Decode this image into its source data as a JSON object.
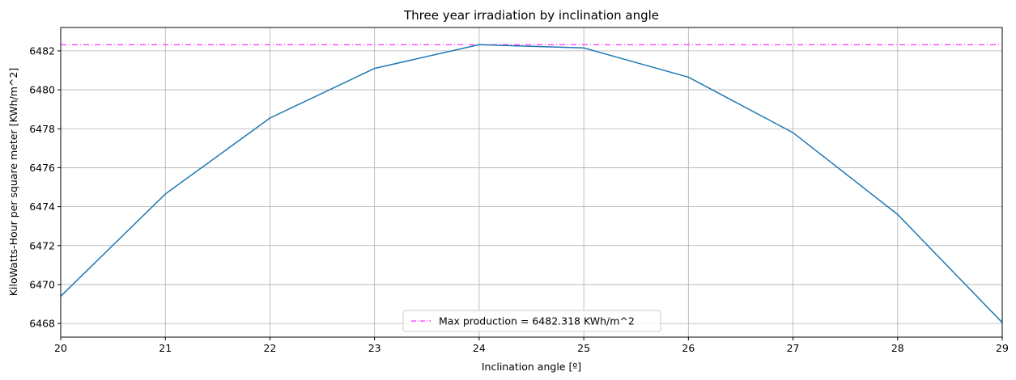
{
  "chart_data": {
    "type": "line",
    "title": "Three year irradiation by inclination angle",
    "xlabel": "Inclination angle [º]",
    "ylabel": "KiloWatts-Hour per square meter [KWh/m^2]",
    "xlim": [
      20,
      29
    ],
    "ylim": [
      6467.3,
      6483.2
    ],
    "x_ticks": [
      "20",
      "21",
      "22",
      "23",
      "24",
      "25",
      "26",
      "27",
      "28",
      "29"
    ],
    "y_ticks": [
      "6468",
      "6470",
      "6472",
      "6474",
      "6476",
      "6478",
      "6480",
      "6482"
    ],
    "x_tick_values": [
      20,
      21,
      22,
      23,
      24,
      25,
      26,
      27,
      28,
      29
    ],
    "y_tick_values": [
      6468,
      6470,
      6472,
      6474,
      6476,
      6478,
      6480,
      6482
    ],
    "grid": true,
    "legend_position": "bottom-center",
    "series": [
      {
        "color": "#1f77b4",
        "x": [
          20,
          21,
          22,
          23,
          24,
          25,
          26,
          27,
          28,
          29
        ],
        "y": [
          6469.4,
          6474.65,
          6478.55,
          6481.1,
          6482.318,
          6482.15,
          6480.65,
          6477.8,
          6473.6,
          6468.05
        ]
      }
    ],
    "reference_line": {
      "label": "Max production = 6482.318 KWh/m^2",
      "y": 6482.318,
      "color": "#ff00ff",
      "style": "dash-dot"
    }
  }
}
